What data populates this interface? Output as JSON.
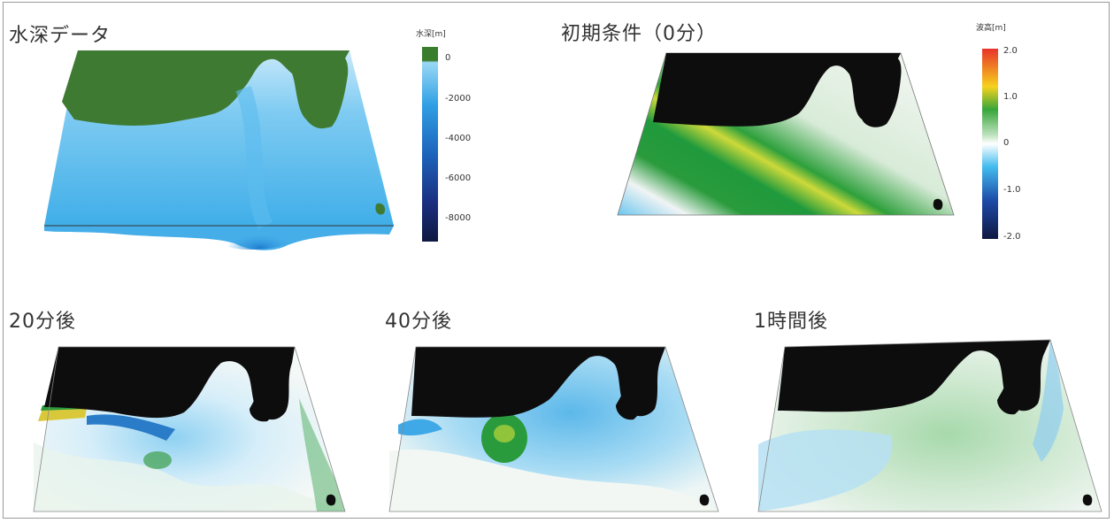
{
  "panels": {
    "depth": {
      "title": "水深データ"
    },
    "initial": {
      "title": "初期条件（0分）"
    },
    "t20": {
      "title": "20分後"
    },
    "t40": {
      "title": "40分後"
    },
    "t60": {
      "title": "1時間後"
    }
  },
  "depth_scale": {
    "title": "水深[m]",
    "ticks": [
      "0",
      "-2000",
      "-4000",
      "-6000",
      "-8000"
    ],
    "colors": [
      "#3a7d2c",
      "#5fc0ef",
      "#2a8fd8",
      "#1c5cb0",
      "#1a2c70",
      "#101a40"
    ]
  },
  "height_scale": {
    "title": "波高[m]",
    "ticks": [
      "2.0",
      "1.0",
      "0",
      "-1.0",
      "-2.0"
    ],
    "colors": [
      "#e8322a",
      "#f6d21d",
      "#2fa03a",
      "#ffffff",
      "#2fb3ea",
      "#1c3f9a",
      "#101a40"
    ]
  },
  "colors": {
    "land_depth": "#3f7a32",
    "land_black": "#0d0d0d",
    "sea_light": "#9fd8f4",
    "sea_mid": "#3fa8e6",
    "sea_deep": "#1f70c8",
    "wave_green": "#1f9a3c",
    "wave_yellow": "#cfd83a",
    "wave_white": "#f4f7f4"
  }
}
